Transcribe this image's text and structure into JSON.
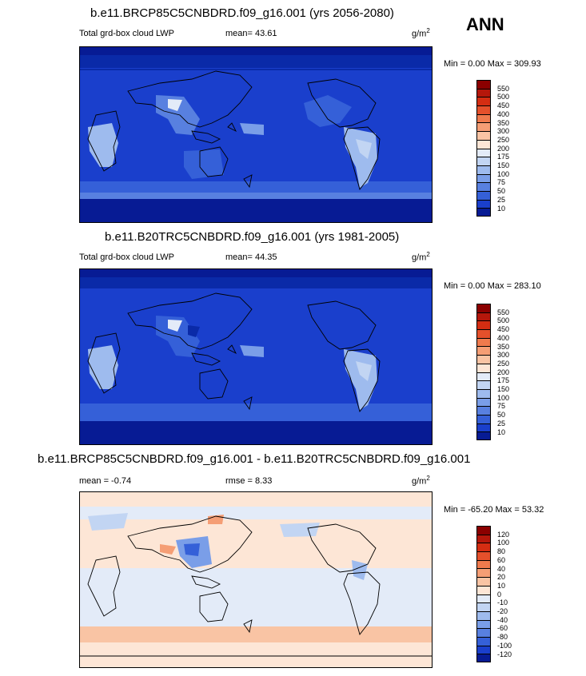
{
  "season": "ANN",
  "unit_base": "g/m",
  "unit_exp": "2",
  "panels": [
    {
      "title": "b.e11.BRCP85C5CNBDRD.f09_g16.001 (yrs 2056-2080)",
      "left_label": "Total grd-box cloud LWP",
      "stat_label": "mean=  43.61",
      "minmax": "Min =   0.00 Max = 309.93"
    },
    {
      "title": "b.e11.B20TRC5CNBDRD.f09_g16.001 (yrs 1981-2005)",
      "left_label": "Total grd-box cloud LWP",
      "stat_label": "mean=  44.35",
      "minmax": "Min =   0.00 Max = 283.10"
    },
    {
      "title": "b.e11.BRCP85C5CNBDRD.f09_g16.001 - b.e11.B20TRC5CNBDRD.f09_g16.001",
      "left_label": "mean =  -0.74",
      "stat_label": "rmse =   8.33",
      "minmax": "Min = -65.20 Max =  53.32"
    }
  ],
  "colorbars": {
    "absolute": {
      "labels": [
        "550",
        "500",
        "450",
        "400",
        "350",
        "300",
        "250",
        "200",
        "175",
        "150",
        "100",
        "75",
        "50",
        "25",
        "10"
      ],
      "colors": [
        "#8b0000",
        "#b5170b",
        "#d42d12",
        "#e4502b",
        "#ef7a4d",
        "#f59e75",
        "#f9c4a4",
        "#fde6d6",
        "#e3ebf8",
        "#c2d5f3",
        "#9ebbee",
        "#7a9ee8",
        "#5880e0",
        "#3560d8",
        "#1a3fcc",
        "#071b94"
      ]
    },
    "difference": {
      "labels": [
        "120",
        "100",
        "80",
        "60",
        "40",
        "20",
        "10",
        "0",
        "-10",
        "-20",
        "-40",
        "-60",
        "-80",
        "-100",
        "-120"
      ],
      "colors": [
        "#8b0000",
        "#b5170b",
        "#d42d12",
        "#e4502b",
        "#ef7a4d",
        "#f59e75",
        "#f9c4a4",
        "#fde6d6",
        "#e3ebf8",
        "#c2d5f3",
        "#9ebbee",
        "#7a9ee8",
        "#5880e0",
        "#3560d8",
        "#1a3fcc",
        "#071b94"
      ]
    }
  }
}
